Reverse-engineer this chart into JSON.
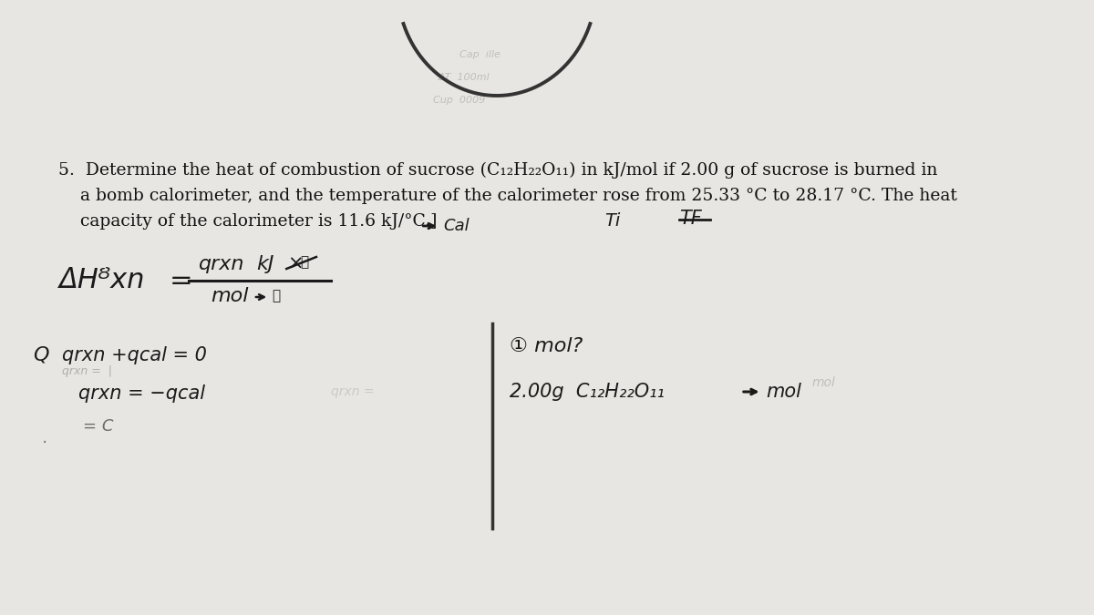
{
  "bg_color": "#e8e6e2",
  "paper_color": "#eceae6",
  "handwriting_color": "#1a1a1a",
  "printed_color": "#111111",
  "problem_text_line1": "5.  Determine the heat of combustion of sucrose (C₁₂H₂₂O₁₁) in kJ/mol if 2.00 g of sucrose is burned in",
  "problem_text_line2": "    a bomb calorimeter, and the temperature of the calorimeter rose from 25.33 °C to 28.17 °C. The heat",
  "problem_text_line3": "    capacity of the calorimeter is 11.6 kJ/°C.]",
  "dHRxn_label": "ΔHᴽxn",
  "equals": "=",
  "qrxn_label": "qrxn",
  "kJ_label": "kJ",
  "mol_label": "mol",
  "Ti_label": "Ti",
  "TF_label": "TF",
  "Q_label": "Q",
  "qrxn_cal_line": "qrxn +qcal = 0",
  "qrxn_eq_line": "qrxn = −qcal",
  "eq_C": "= C",
  "circle1_label": "① mol?",
  "sucrose_line": "2.00g  C₁₂H₂₂O₁₁  →  mol",
  "cal_label": "Cal",
  "arc_color": "#333333",
  "divider_color": "#333333",
  "ghost_text_color": "#c0bfbb",
  "faint_text_color": "#b0afaa"
}
